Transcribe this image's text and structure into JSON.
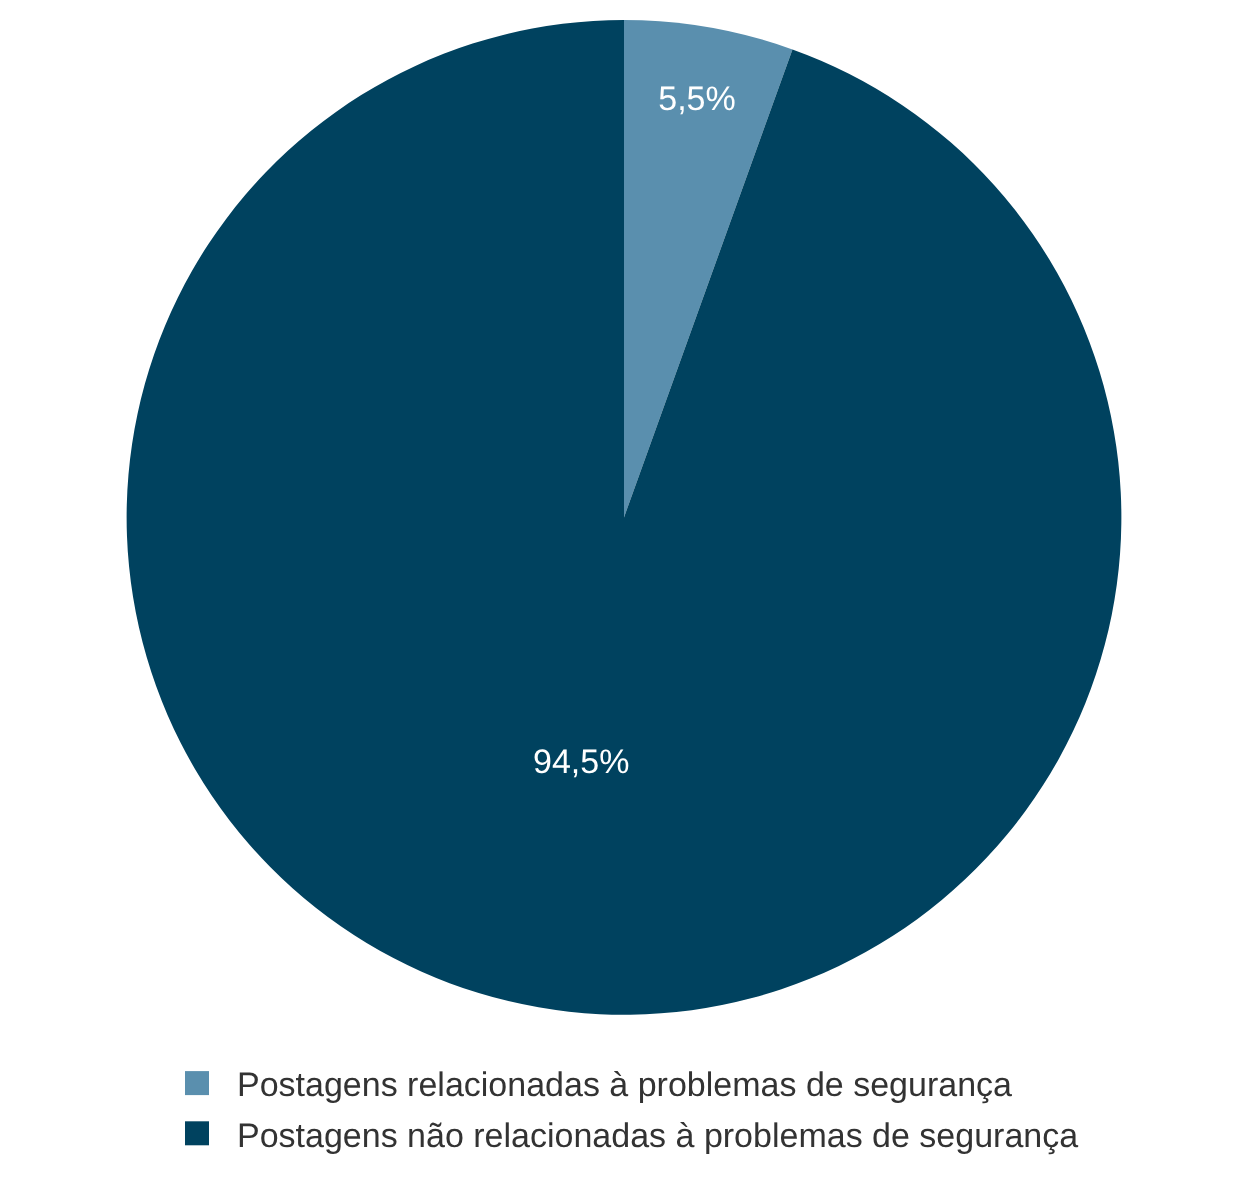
{
  "chart_data": {
    "type": "pie",
    "categories": [
      "Postagens relacionadas à problemas de segurança",
      "Postagens não relacionadas à problemas de segurança"
    ],
    "values": [
      5.5,
      94.5
    ],
    "colors": [
      "#5a8fae",
      "#00425f"
    ],
    "value_labels": [
      "5,5%",
      "94,5%"
    ],
    "legend": "bottom"
  }
}
